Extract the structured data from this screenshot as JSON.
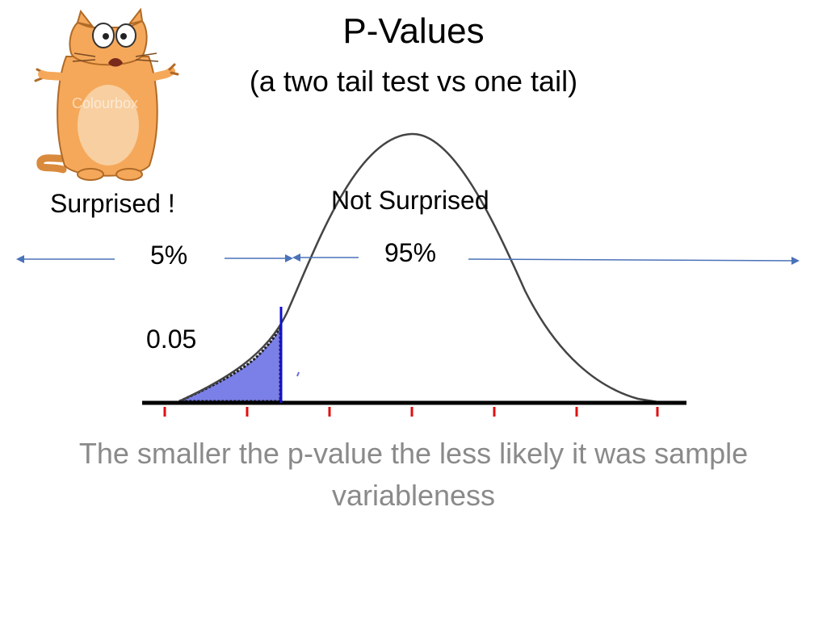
{
  "slide": {
    "title": "P-Values",
    "subtitle": "(a two tail test vs one tail)",
    "caption": "The smaller the p-value the less likely it was sample variableness"
  },
  "regions": {
    "left_label": "Surprised !",
    "right_label": "Not Surprised",
    "left_percent": "5%",
    "right_percent": "95%",
    "p_value": "0.05"
  },
  "mascot": {
    "description_icon": "scared-cat-icon",
    "watermark": "Colourbox"
  },
  "colors": {
    "curve": "#444444",
    "shaded_tail": "#7b7fe8",
    "cutoff_line": "#1010d0",
    "arrows": "#4a72b8",
    "ticks": "#e01010",
    "axis": "#000000",
    "caption": "#8a8a8a",
    "cat_body": "#f5a85a",
    "cat_belly": "#f8cfa0"
  }
}
